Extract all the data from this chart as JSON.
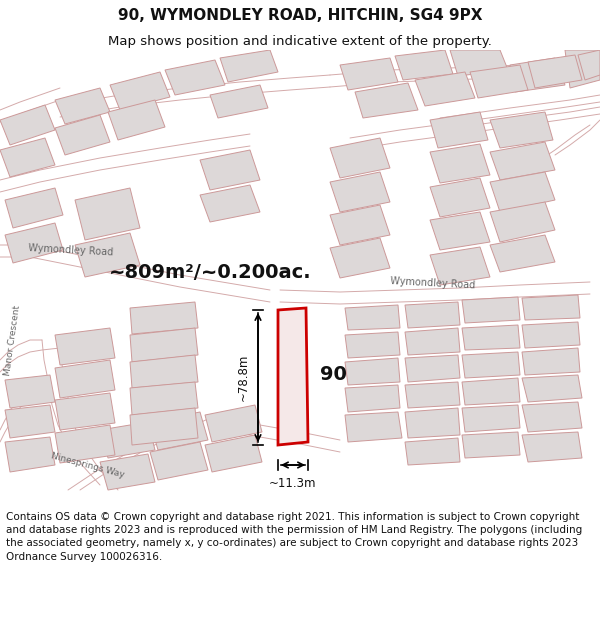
{
  "title_line1": "90, WYMONDLEY ROAD, HITCHIN, SG4 9PX",
  "title_line2": "Map shows position and indicative extent of the property.",
  "footer_text": "Contains OS data © Crown copyright and database right 2021. This information is subject to Crown copyright and database rights 2023 and is reproduced with the permission of HM Land Registry. The polygons (including the associated geometry, namely x, y co-ordinates) are subject to Crown copyright and database rights 2023 Ordnance Survey 100026316.",
  "area_label": "~809m²/~0.200ac.",
  "property_label": "90",
  "width_label": "~11.3m",
  "height_label": "~78.8m",
  "map_bg": "#f2eeee",
  "plot_border": "#cc0000",
  "plot_fill": "#f5e8e8",
  "block_fill": "#ddd8d8",
  "block_border": "#cc9999",
  "road_line_color": "#d4aaaa",
  "text_color": "#111111",
  "title_fontsize": 11,
  "subtitle_fontsize": 9.5,
  "footer_fontsize": 7.5
}
